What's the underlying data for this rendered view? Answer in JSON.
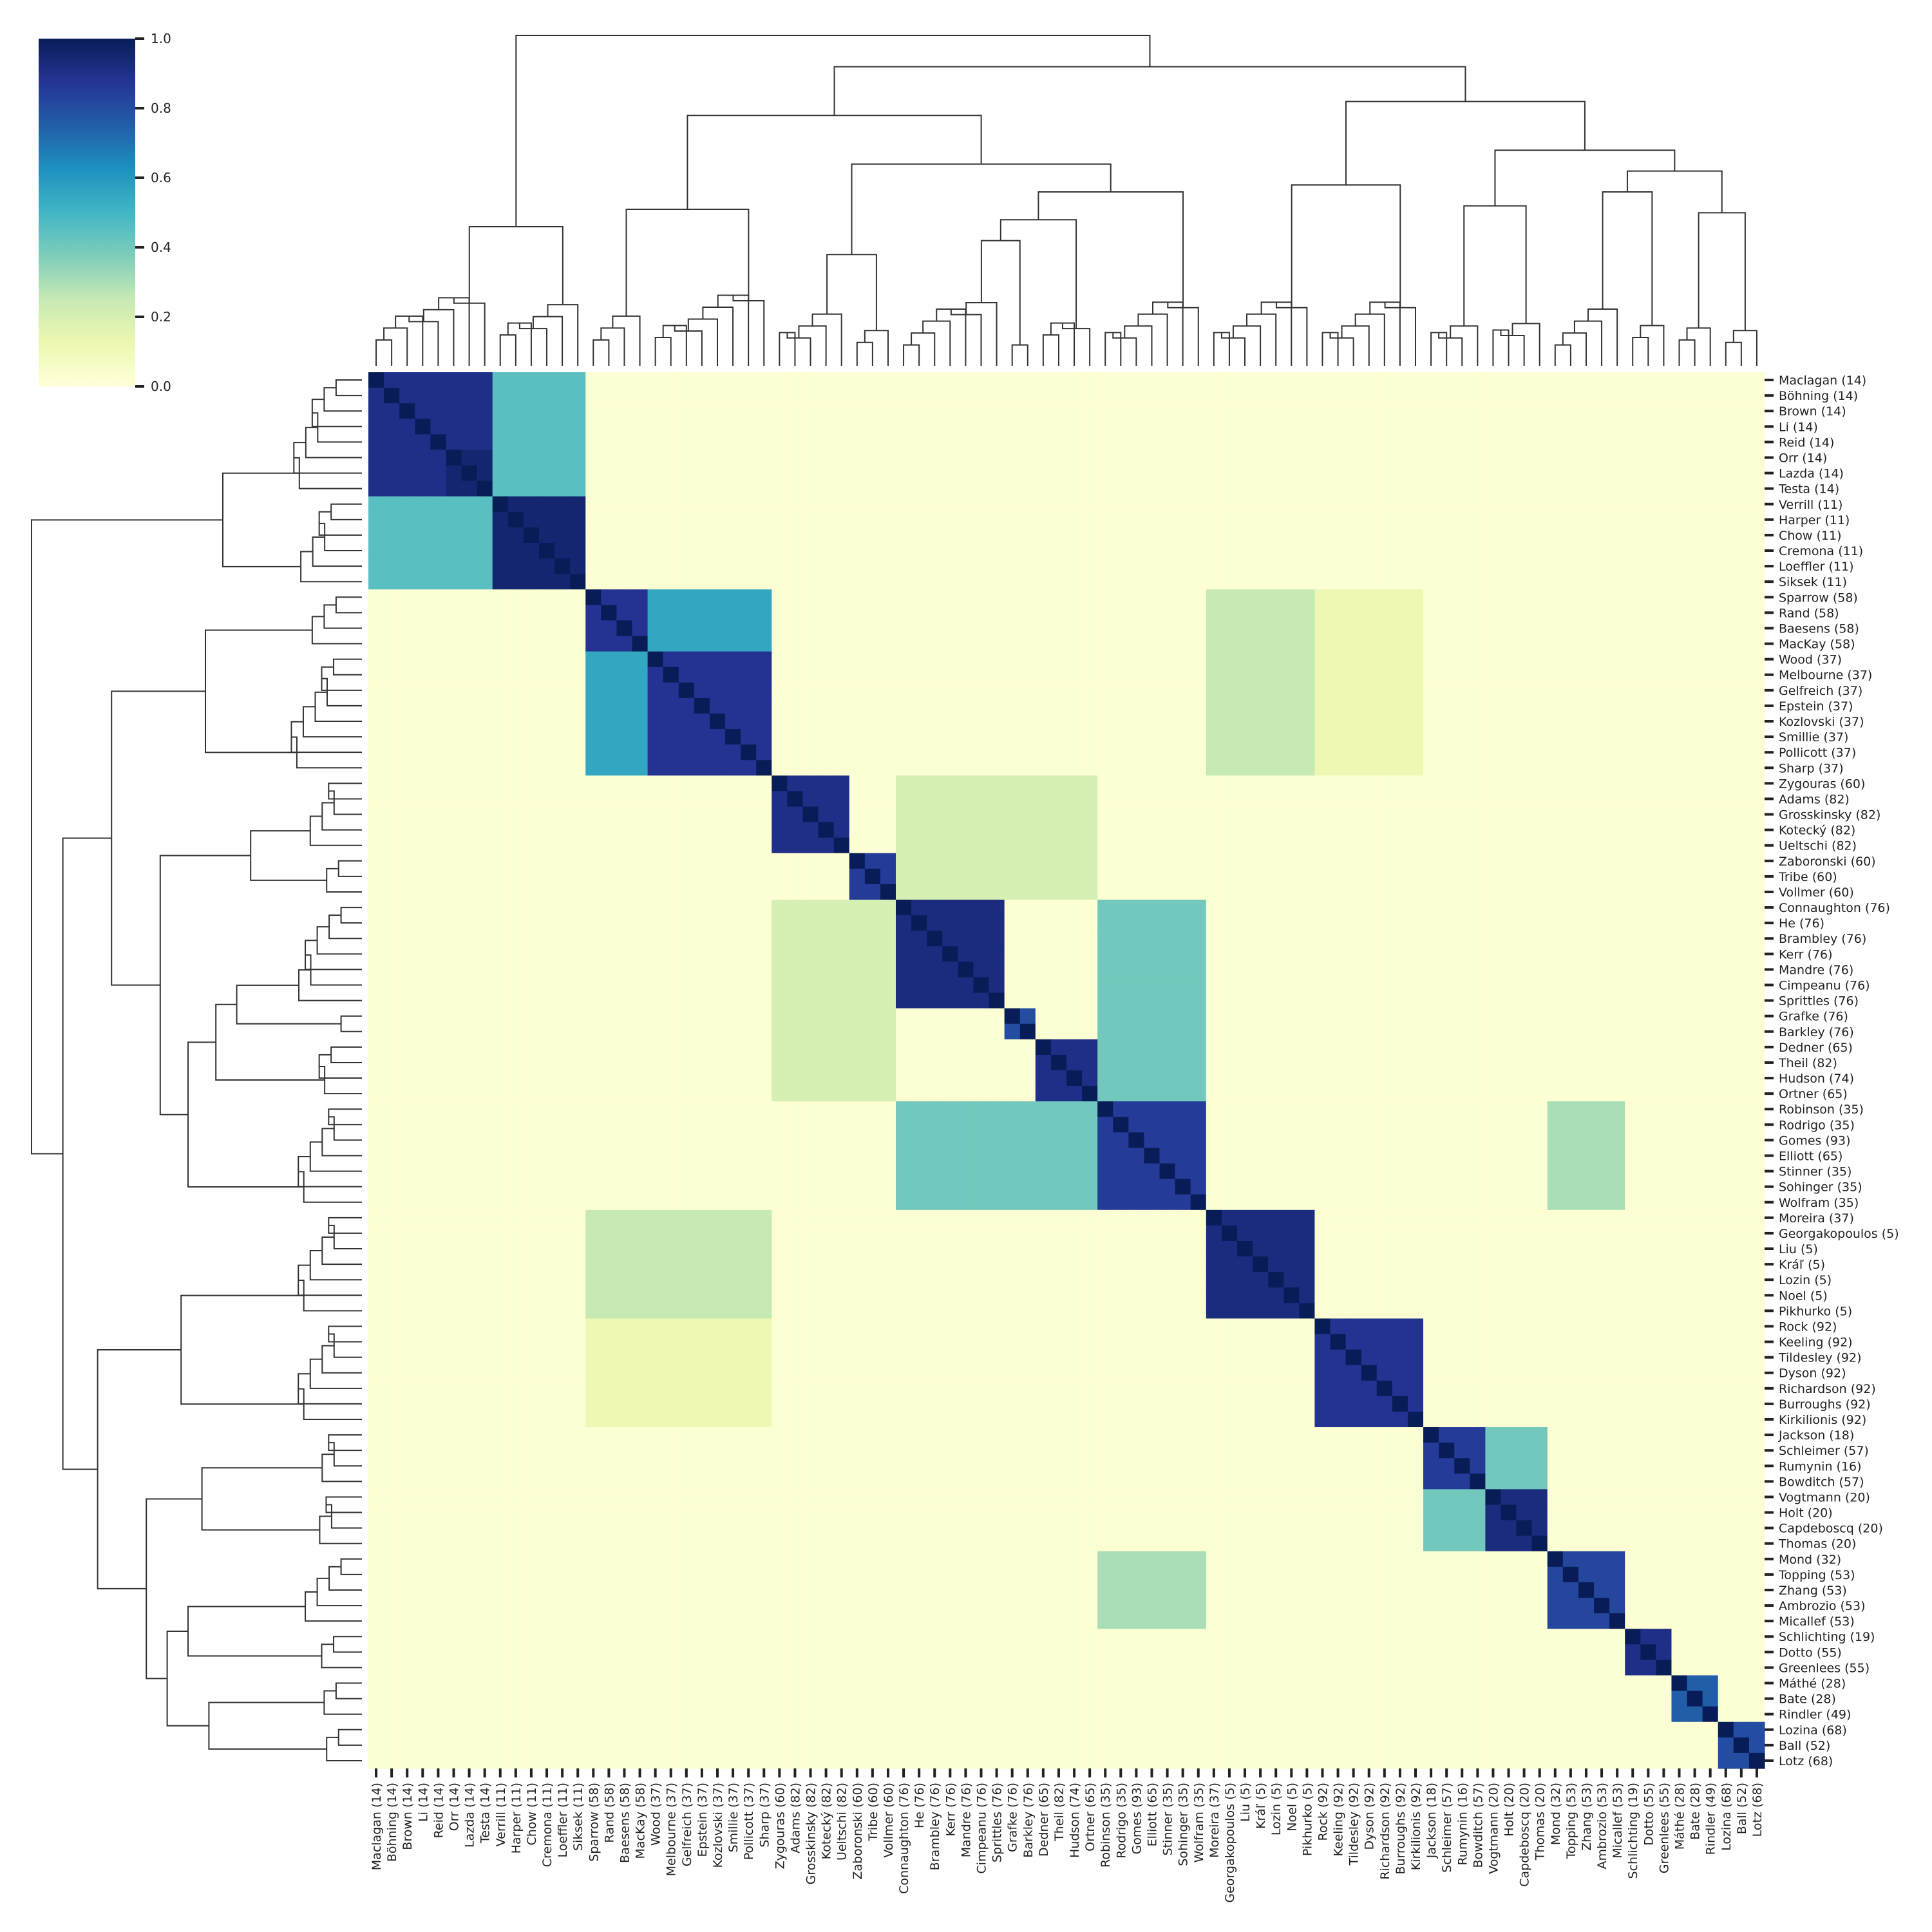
{
  "chart_data": {
    "type": "heatmap",
    "title": "",
    "xlabel": "",
    "ylabel": "",
    "colormap": "YlGnBu",
    "colormap_stops": [
      "#ffffd9",
      "#edf8b1",
      "#c7e9b4",
      "#7fcdbb",
      "#41b6c4",
      "#1d91c0",
      "#225ea8",
      "#253494",
      "#081d58"
    ],
    "value_range": [
      0.0,
      1.0
    ],
    "colorbar_ticks": [
      "0.0",
      "0.2",
      "0.4",
      "0.6",
      "0.8",
      "1.0"
    ],
    "legend_position": "top-left",
    "row_dendrogram": true,
    "column_dendrogram": true,
    "labels": [
      "Maclagan (14)",
      "Böhning (14)",
      "Brown (14)",
      "Li (14)",
      "Reid (14)",
      "Orr (14)",
      "Lazda (14)",
      "Testa (14)",
      "Verrill (11)",
      "Harper (11)",
      "Chow (11)",
      "Cremona (11)",
      "Loeffler (11)",
      "Siksek (11)",
      "Sparrow (58)",
      "Rand (58)",
      "Baesens (58)",
      "MacKay (58)",
      "Wood (37)",
      "Melbourne (37)",
      "Gelfreich (37)",
      "Epstein (37)",
      "Kozlovski (37)",
      "Smillie (37)",
      "Pollicott (37)",
      "Sharp (37)",
      "Zygouras (60)",
      "Adams (82)",
      "Grosskinsky (82)",
      "Kotecký (82)",
      "Ueltschi (82)",
      "Zaboronski (60)",
      "Tribe (60)",
      "Vollmer (60)",
      "Connaughton (76)",
      "He (76)",
      "Brambley (76)",
      "Kerr (76)",
      "Mandre (76)",
      "Cimpeanu (76)",
      "Sprittles (76)",
      "Grafke (76)",
      "Barkley (76)",
      "Dedner (65)",
      "Theil (82)",
      "Hudson (74)",
      "Ortner (65)",
      "Robinson (35)",
      "Rodrigo (35)",
      "Gomes (93)",
      "Elliott (65)",
      "Stinner (35)",
      "Sohinger (35)",
      "Wolfram (35)",
      "Moreira (37)",
      "Georgakopoulos (5)",
      "Liu (5)",
      "Kráľ (5)",
      "Lozin (5)",
      "Noel (5)",
      "Pikhurko (5)",
      "Rock (92)",
      "Keeling (92)",
      "Tildesley (92)",
      "Dyson (92)",
      "Richardson (92)",
      "Burroughs (92)",
      "Kirkilionis (92)",
      "Jackson (18)",
      "Schleimer (57)",
      "Rumynin (16)",
      "Bowditch (57)",
      "Vogtmann (20)",
      "Holt (20)",
      "Capdeboscq (20)",
      "Thomas (20)",
      "Mond (32)",
      "Topping (53)",
      "Zhang (53)",
      "Ambrozio (53)",
      "Micallef (53)",
      "Schlichting (19)",
      "Dotto (55)",
      "Greenlees (55)",
      "Máthé (28)",
      "Bate (28)",
      "Rindler (49)",
      "Lozina (68)",
      "Ball (52)",
      "Lotz (68)"
    ],
    "blocks": [
      [
        0,
        8,
        0.9
      ],
      [
        5,
        8,
        0.95
      ],
      [
        8,
        14,
        0.95
      ],
      [
        14,
        18,
        0.88
      ],
      [
        18,
        26,
        0.88
      ],
      [
        26,
        31,
        0.9
      ],
      [
        31,
        34,
        0.85
      ],
      [
        34,
        41,
        0.92
      ],
      [
        41,
        43,
        0.8
      ],
      [
        43,
        47,
        0.9
      ],
      [
        47,
        54,
        0.85
      ],
      [
        54,
        61,
        0.92
      ],
      [
        61,
        68,
        0.88
      ],
      [
        68,
        72,
        0.85
      ],
      [
        72,
        76,
        0.92
      ],
      [
        76,
        81,
        0.82
      ],
      [
        81,
        84,
        0.9
      ],
      [
        84,
        87,
        0.75
      ],
      [
        87,
        90,
        0.8
      ]
    ],
    "cross_blocks": [
      [
        0,
        8,
        8,
        14,
        0.45
      ],
      [
        14,
        18,
        18,
        26,
        0.55
      ],
      [
        26,
        34,
        34,
        47,
        0.2
      ],
      [
        34,
        47,
        47,
        54,
        0.4
      ],
      [
        54,
        61,
        14,
        26,
        0.25
      ],
      [
        68,
        72,
        72,
        76,
        0.4
      ],
      [
        76,
        81,
        47,
        54,
        0.3
      ],
      [
        61,
        68,
        14,
        26,
        0.12
      ]
    ]
  }
}
